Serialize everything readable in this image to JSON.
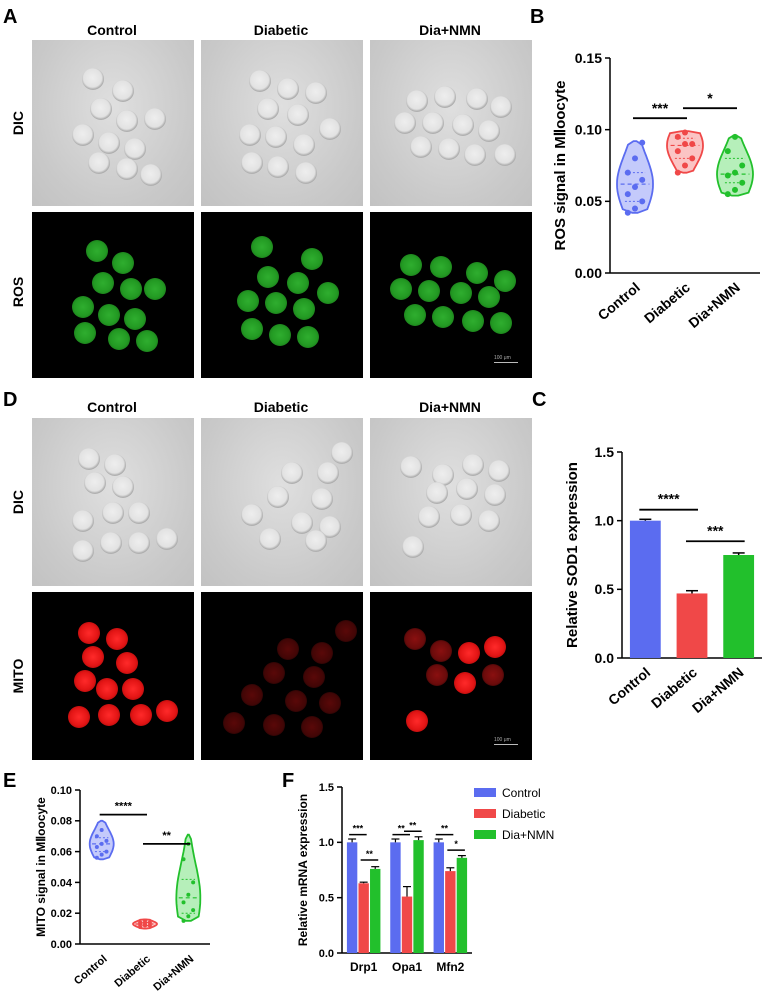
{
  "panels": {
    "A": {
      "label": "A",
      "col_titles": [
        "Control",
        "Diabetic",
        "Dia+NMN"
      ],
      "row_labels": [
        "DIC",
        "ROS"
      ],
      "scale_text": "100 μm"
    },
    "D": {
      "label": "D",
      "col_titles": [
        "Control",
        "Diabetic",
        "Dia+NMN"
      ],
      "row_labels": [
        "DIC",
        "MITO"
      ],
      "scale_text": "100 μm"
    },
    "B": {
      "label": "B"
    },
    "C": {
      "label": "C"
    },
    "E": {
      "label": "E"
    },
    "F": {
      "label": "F"
    }
  },
  "chart_data": [
    {
      "id": "B",
      "type": "violin",
      "ylabel": "ROS signal in MⅡoocyte",
      "categories": [
        "Control",
        "Diabetic",
        "Dia+NMN"
      ],
      "ylim": [
        0,
        0.15
      ],
      "yticks": [
        "0.00",
        "0.05",
        "0.10",
        "0.15"
      ],
      "colors": [
        "#5b6cf0",
        "#f04848",
        "#22c02c"
      ],
      "fills": [
        "#c4cafb",
        "#fbc4c4",
        "#b6efba"
      ],
      "series": [
        {
          "values": [
            0.042,
            0.045,
            0.05,
            0.055,
            0.06,
            0.065,
            0.07,
            0.08,
            0.091
          ],
          "median": 0.062,
          "q1": 0.05,
          "q3": 0.07,
          "min": 0.042,
          "max": 0.092
        },
        {
          "values": [
            0.07,
            0.075,
            0.08,
            0.085,
            0.09,
            0.09,
            0.095,
            0.098
          ],
          "median": 0.089,
          "q1": 0.08,
          "q3": 0.094,
          "min": 0.07,
          "max": 0.099
        },
        {
          "values": [
            0.055,
            0.058,
            0.063,
            0.068,
            0.07,
            0.075,
            0.085,
            0.095
          ],
          "median": 0.069,
          "q1": 0.063,
          "q3": 0.08,
          "min": 0.054,
          "max": 0.096
        }
      ],
      "sig": [
        {
          "from": 0,
          "to": 1,
          "label": "***",
          "y": 0.108
        },
        {
          "from": 1,
          "to": 2,
          "label": "*",
          "y": 0.115
        }
      ]
    },
    {
      "id": "C",
      "type": "bar",
      "ylabel": "Relative SOD1 expression",
      "categories": [
        "Control",
        "Diabetic",
        "Dia+NMN"
      ],
      "values": [
        1.0,
        0.47,
        0.75
      ],
      "errors": [
        0.01,
        0.02,
        0.015
      ],
      "ylim": [
        0,
        1.5
      ],
      "yticks": [
        "0.0",
        "0.5",
        "1.0",
        "1.5"
      ],
      "colors": [
        "#5b6cf0",
        "#f04848",
        "#22c02c"
      ],
      "sig": [
        {
          "from": 0,
          "to": 1,
          "label": "****",
          "y": 1.08
        },
        {
          "from": 1,
          "to": 2,
          "label": "***",
          "y": 0.85
        }
      ]
    },
    {
      "id": "E",
      "type": "violin",
      "ylabel": "MITO signal in MⅡoocyte",
      "categories": [
        "Control",
        "Diabetic",
        "Dia+NMN"
      ],
      "ylim": [
        0,
        0.1
      ],
      "yticks": [
        "0.00",
        "0.02",
        "0.04",
        "0.06",
        "0.08",
        "0.10"
      ],
      "colors": [
        "#5b6cf0",
        "#f04848",
        "#22c02c"
      ],
      "fills": [
        "#c4cafb",
        "#fbc4c4",
        "#b6efba"
      ],
      "series": [
        {
          "values": [
            0.056,
            0.058,
            0.06,
            0.063,
            0.065,
            0.067,
            0.07,
            0.074
          ],
          "median": 0.065,
          "q1": 0.06,
          "q3": 0.069,
          "min": 0.055,
          "max": 0.08
        },
        {
          "values": [
            0.011,
            0.012,
            0.012,
            0.013,
            0.013,
            0.014,
            0.014,
            0.015
          ],
          "median": 0.013,
          "q1": 0.012,
          "q3": 0.014,
          "min": 0.01,
          "max": 0.016
        },
        {
          "values": [
            0.015,
            0.018,
            0.022,
            0.027,
            0.032,
            0.04,
            0.055,
            0.065
          ],
          "median": 0.03,
          "q1": 0.02,
          "q3": 0.042,
          "min": 0.015,
          "max": 0.071
        }
      ],
      "sig": [
        {
          "from": 0,
          "to": 1,
          "label": "****",
          "y": 0.084
        },
        {
          "from": 1,
          "to": 2,
          "label": "**",
          "y": 0.065
        }
      ]
    },
    {
      "id": "F",
      "type": "bar",
      "ylabel": "Relative mRNA expression",
      "categories": [
        "Drp1",
        "Opa1",
        "Mfn2"
      ],
      "ylim": [
        0,
        1.5
      ],
      "yticks": [
        "0.0",
        "0.5",
        "1.0",
        "1.5"
      ],
      "legend_position": "top-right",
      "series": [
        {
          "name": "Control",
          "color": "#5b6cf0",
          "values": [
            1.0,
            1.0,
            1.0
          ],
          "errors": [
            0.03,
            0.03,
            0.03
          ]
        },
        {
          "name": "Diabetic",
          "color": "#f04848",
          "values": [
            0.63,
            0.51,
            0.74
          ],
          "errors": [
            0.01,
            0.09,
            0.03
          ]
        },
        {
          "name": "Dia+NMN",
          "color": "#22c02c",
          "values": [
            0.76,
            1.02,
            0.86
          ],
          "errors": [
            0.02,
            0.03,
            0.02
          ]
        }
      ],
      "sig": [
        {
          "group": 0,
          "from": 0,
          "to": 1,
          "label": "***",
          "y": 1.07
        },
        {
          "group": 0,
          "from": 1,
          "to": 2,
          "label": "**",
          "y": 0.84
        },
        {
          "group": 1,
          "from": 0,
          "to": 1,
          "label": "**",
          "y": 1.07
        },
        {
          "group": 1,
          "from": 1,
          "to": 2,
          "label": "**",
          "y": 1.1
        },
        {
          "group": 2,
          "from": 0,
          "to": 1,
          "label": "**",
          "y": 1.07
        },
        {
          "group": 2,
          "from": 1,
          "to": 2,
          "label": "*",
          "y": 0.93
        }
      ]
    }
  ]
}
